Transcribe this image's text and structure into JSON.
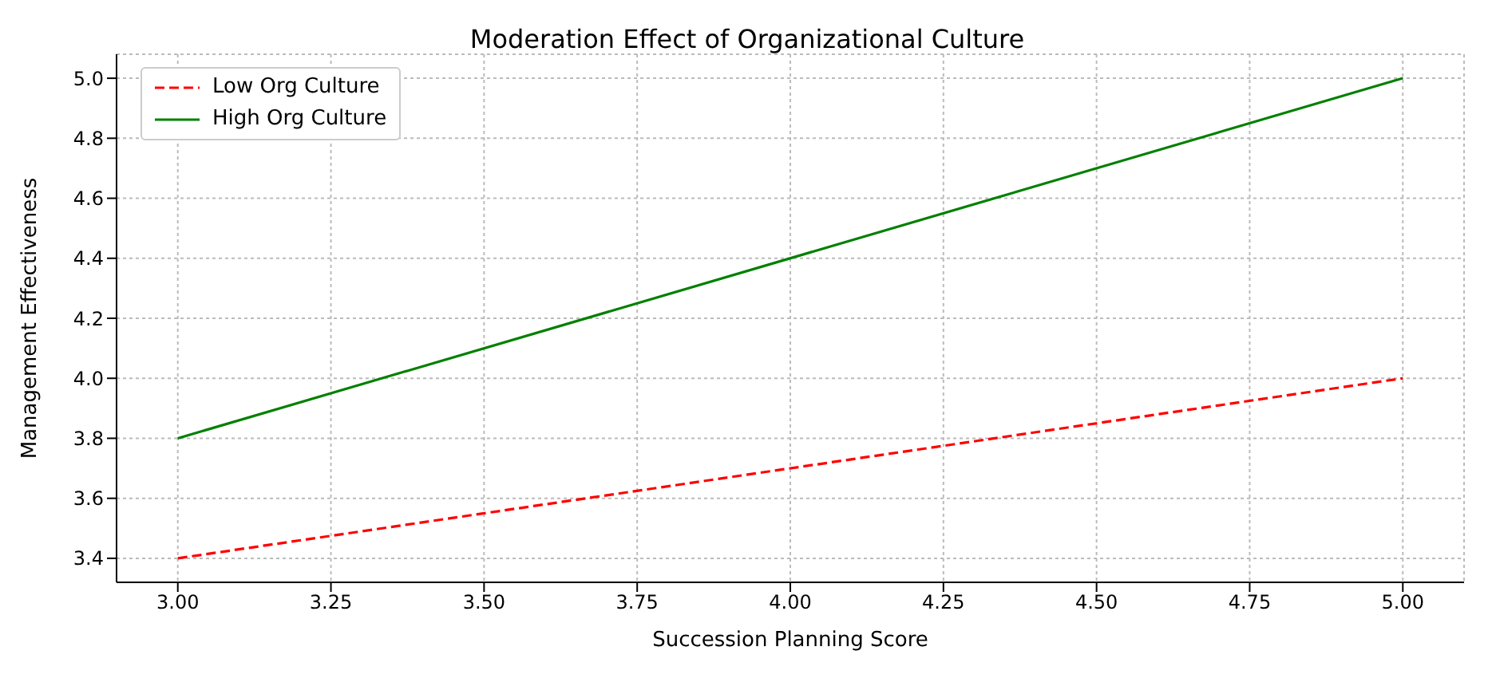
{
  "chart_data": {
    "type": "line",
    "title": "Moderation Effect of Organizational Culture",
    "xlabel": "Succession Planning Score",
    "ylabel": "Management Effectiveness",
    "x": [
      3,
      5
    ],
    "series": [
      {
        "name": "Low Org Culture",
        "color": "#ff0000",
        "values": [
          3.4,
          4.0
        ],
        "line_style": "dashed"
      },
      {
        "name": "High Org Culture",
        "color": "#008000",
        "values": [
          3.8,
          5.0
        ],
        "line_style": "solid"
      }
    ],
    "xlim": [
      2.9,
      5.1
    ],
    "xticks": [
      {
        "value": 3,
        "label": "3.00"
      },
      {
        "value": 3.25,
        "label": "3.25"
      },
      {
        "value": 3.5,
        "label": "3.50"
      },
      {
        "value": 3.75,
        "label": "3.75"
      },
      {
        "value": 4,
        "label": "4.00"
      },
      {
        "value": 4.25,
        "label": "4.25"
      },
      {
        "value": 4.5,
        "label": "4.50"
      },
      {
        "value": 4.75,
        "label": "4.75"
      },
      {
        "value": 5,
        "label": "5.00"
      }
    ],
    "ylim": [
      3.32,
      5.08
    ],
    "yticks": [
      {
        "value": 3.4,
        "label": "3.4"
      },
      {
        "value": 3.6,
        "label": "3.6"
      },
      {
        "value": 3.8,
        "label": "3.8"
      },
      {
        "value": 4,
        "label": "4.0"
      },
      {
        "value": 4.2,
        "label": "4.2"
      },
      {
        "value": 4.4,
        "label": "4.4"
      },
      {
        "value": 4.6,
        "label": "4.6"
      },
      {
        "value": 4.8,
        "label": "4.8"
      },
      {
        "value": 5,
        "label": "5.0"
      }
    ],
    "grid": true,
    "legend": "top left",
    "marker": "none"
  }
}
